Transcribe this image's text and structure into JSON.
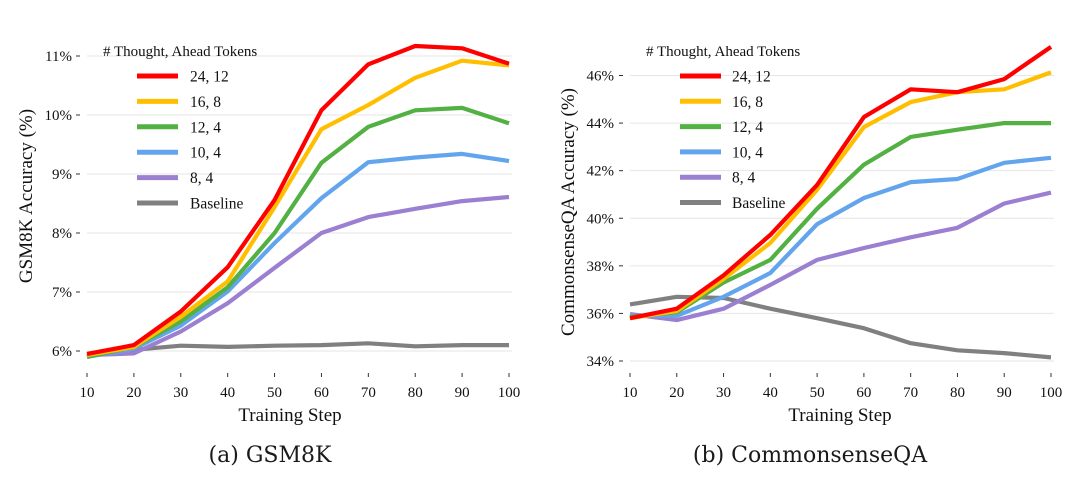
{
  "chart_data": [
    {
      "type": "line",
      "title": "",
      "caption": "(a) GSM8K",
      "xlabel": "Training Step",
      "ylabel": "GSM8K Accuracy (%)",
      "x": [
        10,
        20,
        30,
        40,
        50,
        60,
        70,
        80,
        90,
        100
      ],
      "xticks": [
        "10",
        "20",
        "30",
        "40",
        "50",
        "60",
        "70",
        "80",
        "90",
        "100"
      ],
      "xlim": [
        10,
        100
      ],
      "yticks": [
        6,
        7,
        8,
        9,
        10,
        11
      ],
      "ytick_labels": [
        "6%",
        "7%",
        "8%",
        "9%",
        "10%",
        "11%"
      ],
      "ylim": [
        5.75,
        11.3
      ],
      "grid": true,
      "legend": {
        "title": "# Thought, Ahead Tokens",
        "position": "top-left"
      },
      "series": [
        {
          "name": "24, 12",
          "color": "#ff0000",
          "values": [
            5.95,
            6.1,
            6.67,
            7.42,
            8.56,
            10.08,
            10.86,
            11.17,
            11.13,
            10.87
          ]
        },
        {
          "name": "16, 8",
          "color": "#ffbf00",
          "values": [
            5.93,
            6.07,
            6.58,
            7.18,
            8.44,
            9.76,
            10.17,
            10.63,
            10.92,
            10.84
          ]
        },
        {
          "name": "12, 4",
          "color": "#53b043",
          "values": [
            5.9,
            6.07,
            6.5,
            7.08,
            8.0,
            9.19,
            9.8,
            10.08,
            10.12,
            9.86
          ]
        },
        {
          "name": "10, 4",
          "color": "#63a5ec",
          "values": [
            5.9,
            6.04,
            6.43,
            7.01,
            7.83,
            8.59,
            9.2,
            9.28,
            9.34,
            9.22
          ]
        },
        {
          "name": "8, 4",
          "color": "#9b7fd1",
          "values": [
            5.93,
            5.96,
            6.33,
            6.81,
            7.41,
            8.0,
            8.27,
            8.41,
            8.54,
            8.61
          ]
        },
        {
          "name": "Baseline",
          "color": "#808080",
          "values": [
            5.93,
            6.02,
            6.09,
            6.07,
            6.09,
            6.1,
            6.13,
            6.08,
            6.1,
            6.1
          ]
        }
      ]
    },
    {
      "type": "line",
      "title": "",
      "caption": "(b) CommonsenseQA",
      "xlabel": "Training Step",
      "ylabel": "CommonsenseQA Accuracy (%)",
      "x": [
        10,
        20,
        30,
        40,
        50,
        60,
        70,
        80,
        90,
        100
      ],
      "xticks": [
        "10",
        "20",
        "30",
        "40",
        "50",
        "60",
        "70",
        "80",
        "90",
        "100"
      ],
      "xlim": [
        10,
        100
      ],
      "yticks": [
        34,
        36,
        38,
        40,
        42,
        44,
        46
      ],
      "ytick_labels": [
        "34%",
        "36%",
        "38%",
        "40%",
        "42%",
        "44%",
        "46%"
      ],
      "ylim": [
        33.6,
        47.4
      ],
      "grid": true,
      "legend": {
        "title": "# Thought, Ahead Tokens",
        "position": "top-left"
      },
      "series": [
        {
          "name": "24, 12",
          "color": "#ff0000",
          "values": [
            35.8,
            36.2,
            37.6,
            39.3,
            41.4,
            44.25,
            45.42,
            45.3,
            45.85,
            47.2
          ]
        },
        {
          "name": "16, 8",
          "color": "#ffbf00",
          "values": [
            35.8,
            36.1,
            37.45,
            38.96,
            41.2,
            43.83,
            44.88,
            45.3,
            45.42,
            46.13
          ]
        },
        {
          "name": "12, 4",
          "color": "#53b043",
          "values": [
            35.85,
            36.05,
            37.3,
            38.25,
            40.4,
            42.25,
            43.42,
            43.72,
            44.0,
            44.0
          ]
        },
        {
          "name": "10, 4",
          "color": "#63a5ec",
          "values": [
            35.9,
            35.9,
            36.7,
            37.7,
            39.75,
            40.85,
            41.52,
            41.65,
            42.33,
            42.54
          ]
        },
        {
          "name": "8, 4",
          "color": "#9b7fd1",
          "values": [
            35.97,
            35.72,
            36.2,
            37.2,
            38.25,
            38.75,
            39.2,
            39.6,
            40.62,
            41.08
          ]
        },
        {
          "name": "Baseline",
          "color": "#808080",
          "values": [
            36.38,
            36.7,
            36.65,
            36.2,
            35.8,
            35.38,
            34.75,
            34.45,
            34.33,
            34.15
          ]
        }
      ]
    }
  ]
}
